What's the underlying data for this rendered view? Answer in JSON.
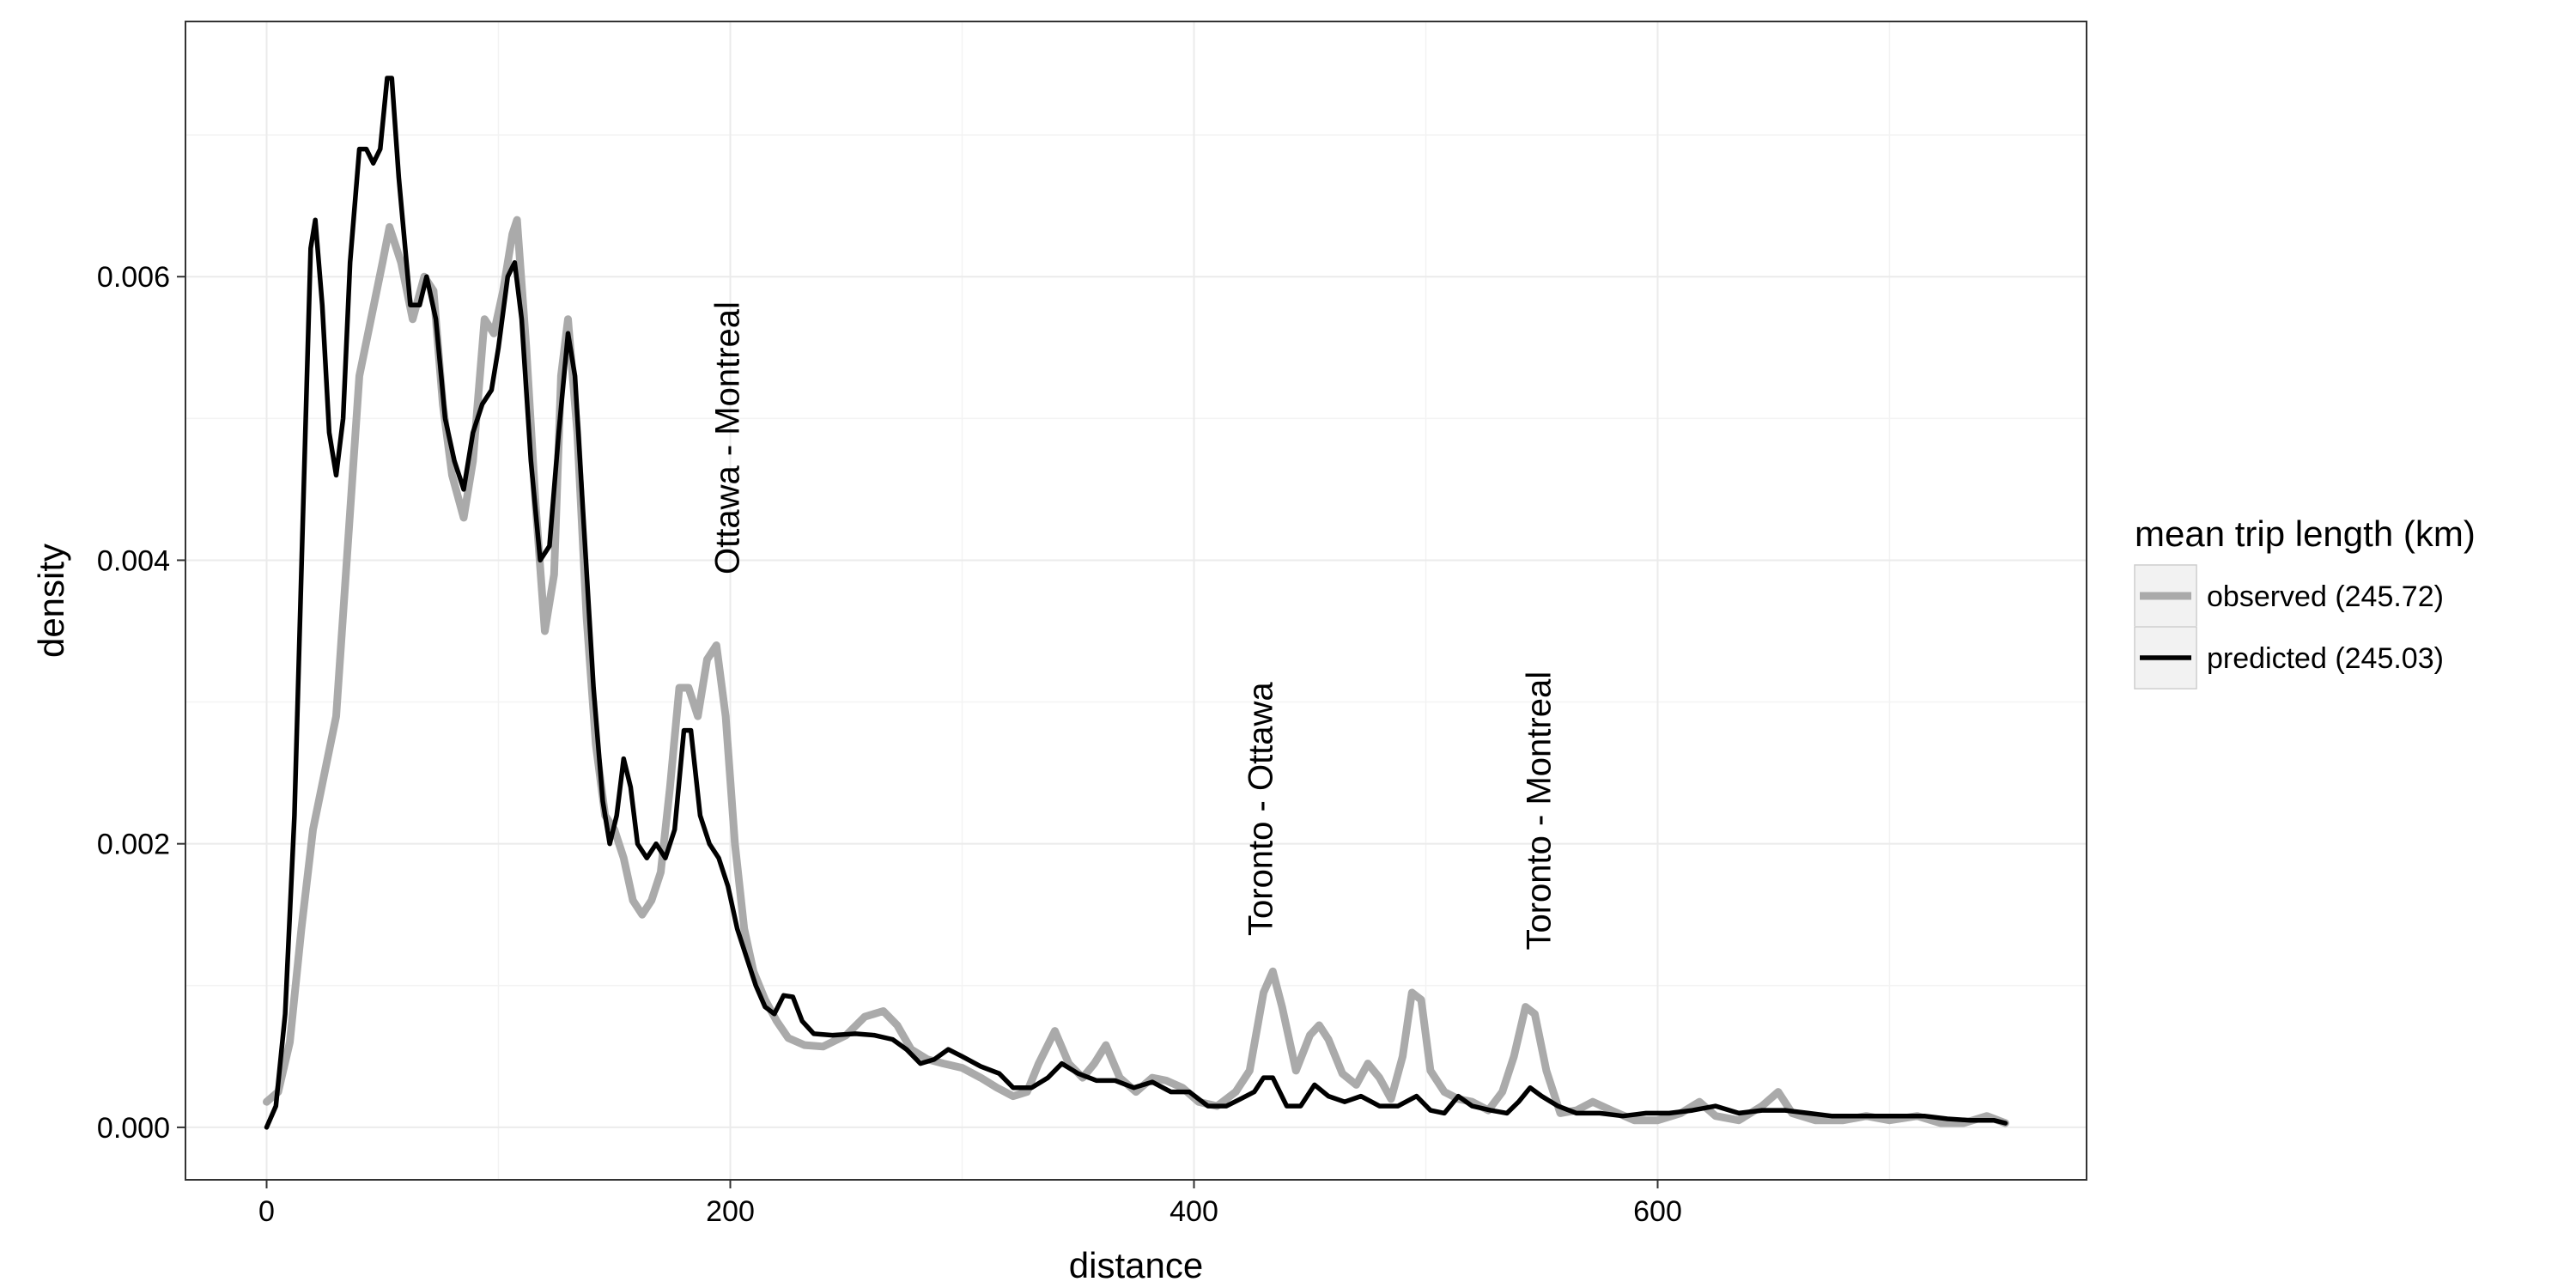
{
  "chart_data": {
    "type": "line",
    "title": "",
    "xlabel": "distance",
    "ylabel": "density",
    "xlim": [
      -35,
      785
    ],
    "ylim": [
      -0.00037,
      0.0078
    ],
    "x_ticks": [
      0,
      200,
      400,
      600
    ],
    "x_tick_labels": [
      "0",
      "200",
      "400",
      "600"
    ],
    "y_ticks": [
      0,
      0.002,
      0.004,
      0.006
    ],
    "y_tick_labels": [
      "0.000",
      "0.002",
      "0.004",
      "0.006"
    ],
    "grid": true,
    "legend": {
      "title": "mean trip length (km)",
      "placement": "right"
    },
    "series": [
      {
        "name": "observed (245.72)",
        "color": "#aaaaaa",
        "points": [
          [
            0,
            0.00018
          ],
          [
            5,
            0.00025
          ],
          [
            10,
            0.0006
          ],
          [
            15,
            0.0014
          ],
          [
            20,
            0.0021
          ],
          [
            25,
            0.0025
          ],
          [
            30,
            0.0029
          ],
          [
            35,
            0.0041
          ],
          [
            40,
            0.0053
          ],
          [
            45,
            0.0057
          ],
          [
            50,
            0.0061
          ],
          [
            53,
            0.00635
          ],
          [
            58,
            0.0061
          ],
          [
            63,
            0.0057
          ],
          [
            68,
            0.006
          ],
          [
            72,
            0.0059
          ],
          [
            76,
            0.0051
          ],
          [
            80,
            0.0046
          ],
          [
            85,
            0.0043
          ],
          [
            89,
            0.0047
          ],
          [
            94,
            0.0057
          ],
          [
            98,
            0.0056
          ],
          [
            102,
            0.0059
          ],
          [
            106,
            0.0063
          ],
          [
            108,
            0.0064
          ],
          [
            112,
            0.0055
          ],
          [
            116,
            0.0044
          ],
          [
            120,
            0.0035
          ],
          [
            124,
            0.0039
          ],
          [
            127,
            0.0053
          ],
          [
            130,
            0.0057
          ],
          [
            134,
            0.0049
          ],
          [
            138,
            0.0036
          ],
          [
            142,
            0.0027
          ],
          [
            146,
            0.0022
          ],
          [
            150,
            0.0021
          ],
          [
            154,
            0.0019
          ],
          [
            158,
            0.0016
          ],
          [
            162,
            0.0015
          ],
          [
            166,
            0.0016
          ],
          [
            170,
            0.0018
          ],
          [
            174,
            0.0024
          ],
          [
            178,
            0.0031
          ],
          [
            182,
            0.0031
          ],
          [
            186,
            0.0029
          ],
          [
            190,
            0.0033
          ],
          [
            194,
            0.0034
          ],
          [
            198,
            0.0029
          ],
          [
            202,
            0.002
          ],
          [
            206,
            0.0014
          ],
          [
            210,
            0.0011
          ],
          [
            215,
            0.0009
          ],
          [
            220,
            0.00075
          ],
          [
            225,
            0.00063
          ],
          [
            232,
            0.00058
          ],
          [
            240,
            0.00057
          ],
          [
            250,
            0.00065
          ],
          [
            258,
            0.00078
          ],
          [
            266,
            0.00082
          ],
          [
            272,
            0.00072
          ],
          [
            278,
            0.00055
          ],
          [
            285,
            0.00048
          ],
          [
            292,
            0.00045
          ],
          [
            300,
            0.00042
          ],
          [
            308,
            0.00035
          ],
          [
            315,
            0.00028
          ],
          [
            322,
            0.00022
          ],
          [
            328,
            0.00025
          ],
          [
            333,
            0.00045
          ],
          [
            340,
            0.00068
          ],
          [
            346,
            0.00045
          ],
          [
            352,
            0.00035
          ],
          [
            357,
            0.00045
          ],
          [
            362,
            0.00058
          ],
          [
            368,
            0.00035
          ],
          [
            375,
            0.00025
          ],
          [
            382,
            0.00035
          ],
          [
            388,
            0.00033
          ],
          [
            395,
            0.00028
          ],
          [
            402,
            0.00018
          ],
          [
            410,
            0.00015
          ],
          [
            418,
            0.00025
          ],
          [
            424,
            0.0004
          ],
          [
            430,
            0.00095
          ],
          [
            434,
            0.0011
          ],
          [
            438,
            0.00085
          ],
          [
            444,
            0.0004
          ],
          [
            450,
            0.00065
          ],
          [
            454,
            0.00072
          ],
          [
            458,
            0.00062
          ],
          [
            464,
            0.00038
          ],
          [
            470,
            0.0003
          ],
          [
            475,
            0.00045
          ],
          [
            480,
            0.00035
          ],
          [
            485,
            0.0002
          ],
          [
            490,
            0.0005
          ],
          [
            494,
            0.00095
          ],
          [
            498,
            0.0009
          ],
          [
            502,
            0.0004
          ],
          [
            508,
            0.00025
          ],
          [
            514,
            0.0002
          ],
          [
            520,
            0.00018
          ],
          [
            527,
            0.00012
          ],
          [
            533,
            0.00025
          ],
          [
            538,
            0.0005
          ],
          [
            543,
            0.00085
          ],
          [
            547,
            0.0008
          ],
          [
            552,
            0.0004
          ],
          [
            558,
            0.0001
          ],
          [
            565,
            0.00012
          ],
          [
            572,
            0.00018
          ],
          [
            580,
            0.00012
          ],
          [
            590,
            5e-05
          ],
          [
            600,
            5e-05
          ],
          [
            610,
            0.0001
          ],
          [
            618,
            0.00018
          ],
          [
            625,
            8e-05
          ],
          [
            635,
            5e-05
          ],
          [
            645,
            0.00015
          ],
          [
            652,
            0.00025
          ],
          [
            658,
            0.0001
          ],
          [
            668,
            5e-05
          ],
          [
            680,
            5e-05
          ],
          [
            690,
            8e-05
          ],
          [
            700,
            5e-05
          ],
          [
            712,
            8e-05
          ],
          [
            722,
            3e-05
          ],
          [
            732,
            3e-05
          ],
          [
            742,
            8e-05
          ],
          [
            750,
            3e-05
          ]
        ]
      },
      {
        "name": "predicted (245.03)",
        "color": "#000000",
        "points": [
          [
            0,
            0.0
          ],
          [
            4,
            0.00015
          ],
          [
            8,
            0.0008
          ],
          [
            12,
            0.0022
          ],
          [
            16,
            0.0045
          ],
          [
            19,
            0.0062
          ],
          [
            21,
            0.0064
          ],
          [
            24,
            0.0058
          ],
          [
            27,
            0.0049
          ],
          [
            30,
            0.0046
          ],
          [
            33,
            0.005
          ],
          [
            36,
            0.0061
          ],
          [
            40,
            0.0069
          ],
          [
            43,
            0.0069
          ],
          [
            46,
            0.0068
          ],
          [
            49,
            0.0069
          ],
          [
            52,
            0.0074
          ],
          [
            54,
            0.0074
          ],
          [
            57,
            0.0067
          ],
          [
            62,
            0.0058
          ],
          [
            66,
            0.0058
          ],
          [
            69,
            0.006
          ],
          [
            73,
            0.0057
          ],
          [
            77,
            0.005
          ],
          [
            81,
            0.0047
          ],
          [
            85,
            0.0045
          ],
          [
            89,
            0.0049
          ],
          [
            93,
            0.0051
          ],
          [
            97,
            0.0052
          ],
          [
            100,
            0.0055
          ],
          [
            104,
            0.006
          ],
          [
            107,
            0.0061
          ],
          [
            110,
            0.0057
          ],
          [
            114,
            0.0047
          ],
          [
            118,
            0.004
          ],
          [
            122,
            0.0041
          ],
          [
            126,
            0.0049
          ],
          [
            130,
            0.0056
          ],
          [
            133,
            0.0053
          ],
          [
            137,
            0.0042
          ],
          [
            141,
            0.0031
          ],
          [
            145,
            0.0023
          ],
          [
            148,
            0.002
          ],
          [
            151,
            0.0022
          ],
          [
            154,
            0.0026
          ],
          [
            157,
            0.0024
          ],
          [
            160,
            0.002
          ],
          [
            164,
            0.0019
          ],
          [
            168,
            0.002
          ],
          [
            172,
            0.0019
          ],
          [
            176,
            0.0021
          ],
          [
            180,
            0.0028
          ],
          [
            183,
            0.0028
          ],
          [
            187,
            0.0022
          ],
          [
            191,
            0.002
          ],
          [
            195,
            0.0019
          ],
          [
            199,
            0.0017
          ],
          [
            203,
            0.0014
          ],
          [
            207,
            0.0012
          ],
          [
            211,
            0.001
          ],
          [
            215,
            0.00085
          ],
          [
            219,
            0.0008
          ],
          [
            223,
            0.00093
          ],
          [
            227,
            0.00092
          ],
          [
            231,
            0.00075
          ],
          [
            236,
            0.00066
          ],
          [
            244,
            0.00065
          ],
          [
            254,
            0.00066
          ],
          [
            262,
            0.00065
          ],
          [
            270,
            0.00062
          ],
          [
            276,
            0.00055
          ],
          [
            282,
            0.00045
          ],
          [
            288,
            0.00048
          ],
          [
            294,
            0.00055
          ],
          [
            300,
            0.0005
          ],
          [
            308,
            0.00043
          ],
          [
            316,
            0.00038
          ],
          [
            322,
            0.00028
          ],
          [
            330,
            0.00028
          ],
          [
            337,
            0.00035
          ],
          [
            343,
            0.00045
          ],
          [
            350,
            0.00038
          ],
          [
            358,
            0.00033
          ],
          [
            366,
            0.00033
          ],
          [
            374,
            0.00028
          ],
          [
            382,
            0.00032
          ],
          [
            390,
            0.00025
          ],
          [
            398,
            0.00025
          ],
          [
            406,
            0.00015
          ],
          [
            414,
            0.00015
          ],
          [
            420,
            0.0002
          ],
          [
            426,
            0.00025
          ],
          [
            430,
            0.00035
          ],
          [
            434,
            0.00035
          ],
          [
            440,
            0.00015
          ],
          [
            446,
            0.00015
          ],
          [
            452,
            0.0003
          ],
          [
            458,
            0.00022
          ],
          [
            465,
            0.00018
          ],
          [
            472,
            0.00022
          ],
          [
            480,
            0.00015
          ],
          [
            488,
            0.00015
          ],
          [
            496,
            0.00022
          ],
          [
            502,
            0.00012
          ],
          [
            508,
            0.0001
          ],
          [
            514,
            0.00022
          ],
          [
            520,
            0.00015
          ],
          [
            528,
            0.00012
          ],
          [
            535,
            0.0001
          ],
          [
            540,
            0.00018
          ],
          [
            545,
            0.00028
          ],
          [
            550,
            0.00022
          ],
          [
            557,
            0.00015
          ],
          [
            565,
            0.0001
          ],
          [
            575,
            0.0001
          ],
          [
            585,
            8e-05
          ],
          [
            595,
            0.0001
          ],
          [
            605,
            0.0001
          ],
          [
            615,
            0.00012
          ],
          [
            625,
            0.00015
          ],
          [
            635,
            0.0001
          ],
          [
            645,
            0.00012
          ],
          [
            655,
            0.00012
          ],
          [
            665,
            0.0001
          ],
          [
            675,
            8e-05
          ],
          [
            685,
            8e-05
          ],
          [
            695,
            8e-05
          ],
          [
            705,
            8e-05
          ],
          [
            715,
            8e-05
          ],
          [
            725,
            6e-05
          ],
          [
            735,
            5e-05
          ],
          [
            745,
            5e-05
          ],
          [
            750,
            3e-05
          ]
        ]
      }
    ],
    "annotations": [
      {
        "text": "Ottawa - Montreal",
        "x": 200,
        "y": 0.0039
      },
      {
        "text": "Toronto - Ottawa",
        "x": 430,
        "y": 0.00135
      },
      {
        "text": "Toronto - Montreal",
        "x": 550,
        "y": 0.00125
      }
    ]
  }
}
